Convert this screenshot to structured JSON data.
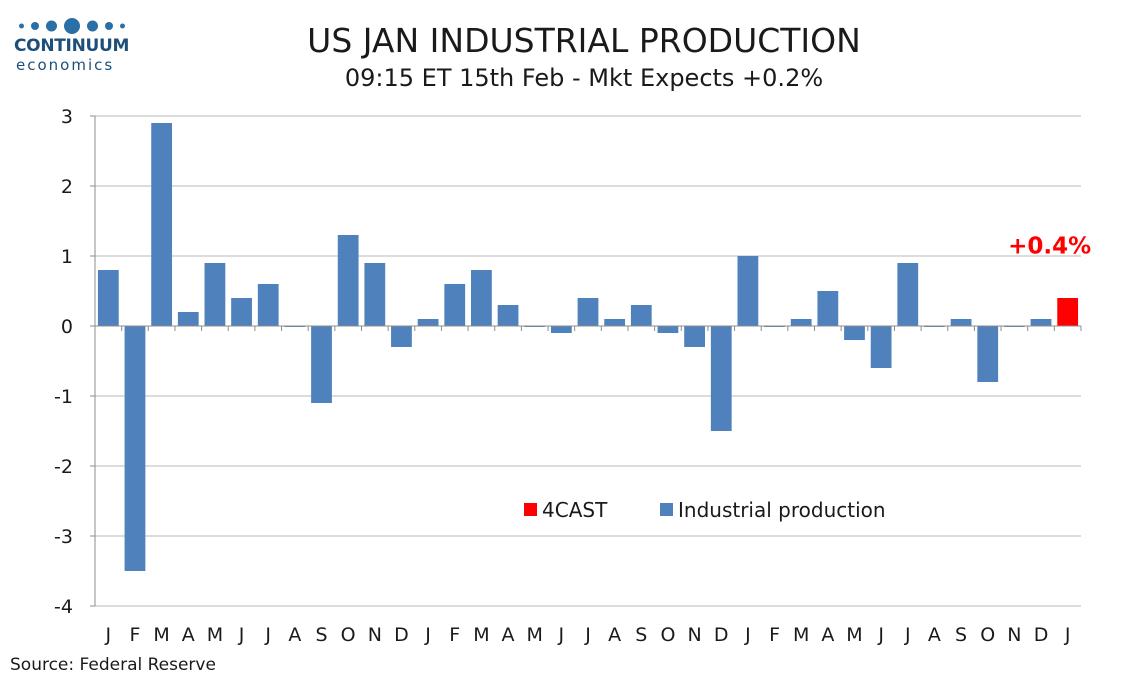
{
  "logo": {
    "name": "CONTINUUM",
    "sub": "economics"
  },
  "chart_data": {
    "type": "bar",
    "title": "US JAN INDUSTRIAL PRODUCTION",
    "subtitle": "09:15 ET 15th Feb - Mkt Expects +0.2%",
    "ylim": [
      -4,
      3
    ],
    "yticks": [
      3,
      2,
      1,
      0,
      -1,
      -2,
      -3,
      -4
    ],
    "grid": true,
    "legend_position": "center",
    "categories": [
      "J",
      "F",
      "M",
      "A",
      "M",
      "J",
      "J",
      "A",
      "S",
      "O",
      "N",
      "D",
      "J",
      "F",
      "M",
      "A",
      "M",
      "J",
      "J",
      "A",
      "S",
      "O",
      "N",
      "D",
      "J",
      "F",
      "M",
      "A",
      "M",
      "J",
      "J",
      "A",
      "S",
      "O",
      "N",
      "D",
      "J"
    ],
    "series": [
      {
        "name": "Industrial production",
        "color": "#4f81bd",
        "values": [
          0.8,
          -3.5,
          2.9,
          0.2,
          0.9,
          0.4,
          0.6,
          0.0,
          -1.1,
          1.3,
          0.9,
          -0.3,
          0.1,
          0.6,
          0.8,
          0.3,
          0.0,
          -0.1,
          0.4,
          0.1,
          0.3,
          -0.1,
          -0.3,
          -1.5,
          1.0,
          0.0,
          0.1,
          0.5,
          -0.2,
          -0.6,
          0.9,
          0.0,
          0.1,
          -0.8,
          0.0,
          0.1,
          null
        ]
      },
      {
        "name": "4CAST",
        "color": "#ff0000",
        "values": [
          null,
          null,
          null,
          null,
          null,
          null,
          null,
          null,
          null,
          null,
          null,
          null,
          null,
          null,
          null,
          null,
          null,
          null,
          null,
          null,
          null,
          null,
          null,
          null,
          null,
          null,
          null,
          null,
          null,
          null,
          null,
          null,
          null,
          null,
          null,
          null,
          0.4
        ]
      }
    ],
    "legend": [
      "4CAST",
      "Industrial production"
    ],
    "annotation": {
      "text": "+0.4%",
      "color": "#ff0000",
      "category_index": 36
    },
    "source": "Source: Federal Reserve"
  }
}
